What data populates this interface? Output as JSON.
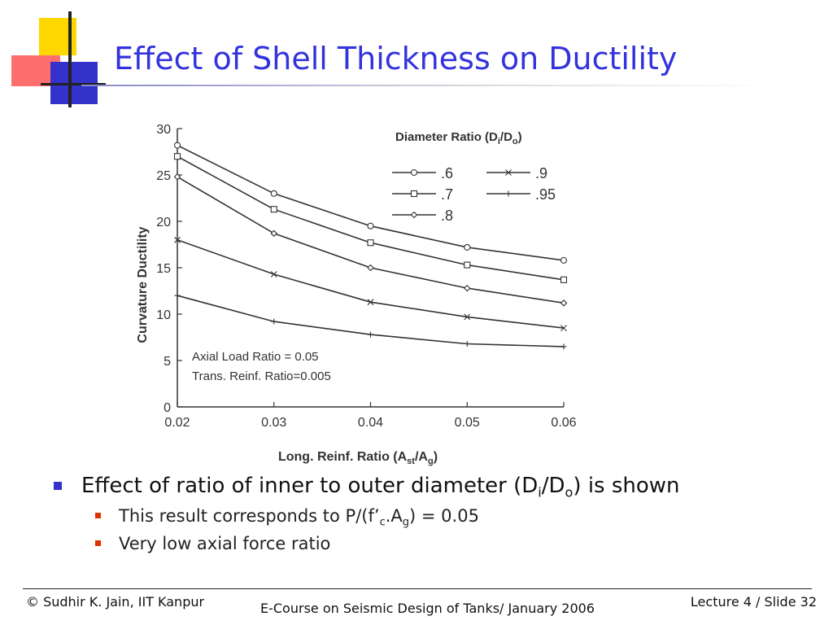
{
  "slide": {
    "title": "Effect of Shell Thickness on Ductility"
  },
  "chart_data": {
    "type": "line",
    "legend_title_part1": "Diameter Ratio (D",
    "legend_title_sub1": "i",
    "legend_title_part2": "/D",
    "legend_title_sub2": "o",
    "legend_title_part3": ")",
    "legend_placement": "top-right",
    "ylabel": "Curvature Ductility",
    "xlabel_part1": "Long. Reinf. Ratio (A",
    "xlabel_sub1": "st",
    "xlabel_part2": "/A",
    "xlabel_sub2": "g",
    "xlabel_part3": ")",
    "annotation_1": "Axial Load Ratio = 0.05",
    "annotation_2": "Trans. Reinf. Ratio=0.005",
    "xlim": [
      0.02,
      0.06
    ],
    "ylim": [
      0,
      30
    ],
    "x_ticks": [
      "0.02",
      "0.03",
      "0.04",
      "0.05",
      "0.06"
    ],
    "y_ticks": [
      "0",
      "5",
      "10",
      "15",
      "20",
      "25",
      "30"
    ],
    "x": [
      0.02,
      0.03,
      0.04,
      0.05,
      0.06
    ],
    "grid": false,
    "series": [
      {
        "name": ".6",
        "marker": "circle",
        "values": [
          28.2,
          23.0,
          19.5,
          17.2,
          15.8
        ]
      },
      {
        "name": ".7",
        "marker": "square",
        "values": [
          27.0,
          21.3,
          17.7,
          15.3,
          13.7
        ]
      },
      {
        "name": ".8",
        "marker": "diamond",
        "values": [
          24.8,
          18.7,
          15.0,
          12.8,
          11.2
        ]
      },
      {
        "name": ".9",
        "marker": "x",
        "values": [
          18.0,
          14.3,
          11.3,
          9.7,
          8.5
        ]
      },
      {
        "name": ".95",
        "marker": "plus",
        "values": [
          12.0,
          9.2,
          7.8,
          6.8,
          6.5
        ]
      }
    ]
  },
  "bullets": {
    "main_part1": "Effect of ratio of inner to outer diameter (D",
    "main_sub1": "i",
    "main_part2": "/D",
    "main_sub2": "o",
    "main_part3": ") is shown",
    "sub1_part1": "This result corresponds to P/(f’",
    "sub1_sub1": "c",
    "sub1_part2": ".A",
    "sub1_sub2": "g",
    "sub1_part3": ") = 0.05",
    "sub2": "Very low axial force ratio"
  },
  "footer": {
    "left": "© Sudhir K. Jain, IIT Kanpur",
    "center": "E-Course on Seismic Design of Tanks/ January 2006",
    "right": "Lecture 4 / Slide 32"
  },
  "colors": {
    "title": "#3333dd",
    "logo_yellow": "#ffd700",
    "logo_red": "#ff4444",
    "logo_blue": "#3333cc",
    "bullet_main": "#3333cc",
    "bullet_sub": "#dd3300"
  }
}
